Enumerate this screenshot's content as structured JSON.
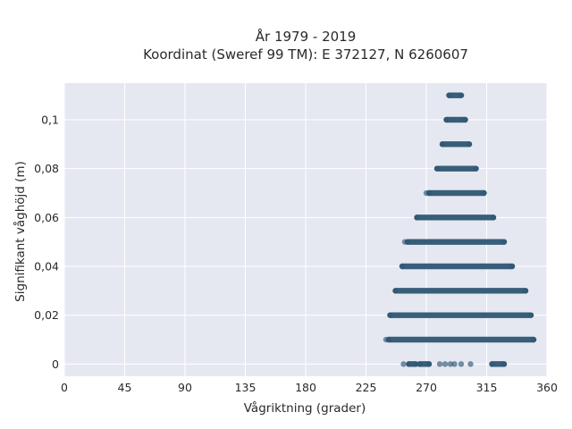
{
  "chart_data": {
    "type": "scatter",
    "title_lines": [
      "År 1979 - 2019",
      "Koordinat (Sweref 99 TM): E 372127, N 6260607"
    ],
    "xlabel": "Vågriktning (grader)",
    "ylabel": "Signifikant våghöjd (m)",
    "xlim": [
      0,
      360
    ],
    "ylim": [
      -0.005,
      0.115
    ],
    "x_ticks": [
      0,
      45,
      90,
      135,
      180,
      225,
      270,
      315,
      360
    ],
    "x_tick_labels": [
      "0",
      "45",
      "90",
      "135",
      "180",
      "225",
      "270",
      "315",
      "360"
    ],
    "y_ticks": [
      0,
      0.02,
      0.04,
      0.06,
      0.08,
      0.1
    ],
    "y_tick_labels": [
      "0",
      "0,02",
      "0,04",
      "0,06",
      "0,08",
      "0,1"
    ],
    "grid": true,
    "background_color": "#e5e8f1",
    "grid_color": "#ffffff",
    "marker_color": "#2f5773",
    "series": [
      {
        "bands": [
          {
            "y": 0.0,
            "x_min": 257,
            "x_max": 262
          },
          {
            "y": 0.0,
            "x_min": 265,
            "x_max": 272
          },
          {
            "y": 0.0,
            "x_min": 319,
            "x_max": 328
          },
          {
            "y": 0.01,
            "x_min": 242,
            "x_max": 350
          },
          {
            "y": 0.02,
            "x_min": 243,
            "x_max": 348
          },
          {
            "y": 0.03,
            "x_min": 247,
            "x_max": 344
          },
          {
            "y": 0.04,
            "x_min": 252,
            "x_max": 334
          },
          {
            "y": 0.05,
            "x_min": 256,
            "x_max": 328
          },
          {
            "y": 0.06,
            "x_min": 263,
            "x_max": 320
          },
          {
            "y": 0.07,
            "x_min": 272,
            "x_max": 313
          },
          {
            "y": 0.08,
            "x_min": 278,
            "x_max": 307
          },
          {
            "y": 0.09,
            "x_min": 282,
            "x_max": 302
          },
          {
            "y": 0.1,
            "x_min": 285,
            "x_max": 299
          },
          {
            "y": 0.11,
            "x_min": 287,
            "x_max": 296
          }
        ],
        "outliers": [
          {
            "x": 253,
            "y": 0.0
          },
          {
            "x": 280,
            "y": 0.0
          },
          {
            "x": 284,
            "y": 0.0
          },
          {
            "x": 288,
            "y": 0.0
          },
          {
            "x": 291,
            "y": 0.0
          },
          {
            "x": 296,
            "y": 0.0
          },
          {
            "x": 303,
            "y": 0.0
          },
          {
            "x": 240,
            "y": 0.01
          },
          {
            "x": 254,
            "y": 0.05
          },
          {
            "x": 270,
            "y": 0.07
          }
        ]
      }
    ]
  }
}
